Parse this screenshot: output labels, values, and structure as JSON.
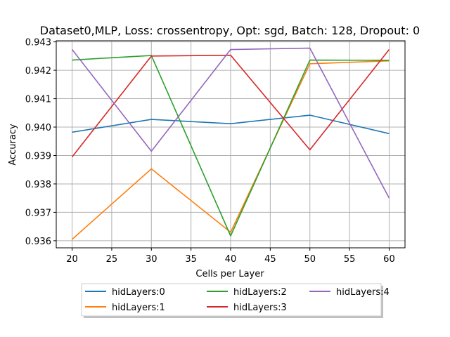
{
  "chart_data": {
    "type": "line",
    "title": "Dataset0,MLP, Loss: crossentropy, Opt: sgd, Batch: 128, Dropout: 0",
    "xlabel": "Cells per Layer",
    "ylabel": "Accuracy",
    "x": [
      20,
      30,
      40,
      50,
      60
    ],
    "xlim": [
      18,
      62
    ],
    "ylim": [
      0.93575,
      0.94304
    ],
    "xticks": [
      20,
      25,
      30,
      35,
      40,
      45,
      50,
      55,
      60
    ],
    "yticks": [
      0.936,
      0.937,
      0.938,
      0.939,
      0.94,
      0.941,
      0.942,
      0.943
    ],
    "grid": true,
    "legend_position": "bottom-center, outside plot, 3 columns",
    "series": [
      {
        "name": "hidLayers:0",
        "color": "#1f77b4",
        "values": [
          0.93982,
          0.94027,
          0.94012,
          0.94042,
          0.93977
        ]
      },
      {
        "name": "hidLayers:1",
        "color": "#ff7f0e",
        "values": [
          0.93605,
          0.93853,
          0.9363,
          0.94223,
          0.94233
        ]
      },
      {
        "name": "hidLayers:2",
        "color": "#2ca02c",
        "values": [
          0.94236,
          0.94252,
          0.93617,
          0.94236,
          0.94235
        ]
      },
      {
        "name": "hidLayers:3",
        "color": "#d62728",
        "values": [
          0.93895,
          0.9425,
          0.94253,
          0.9392,
          0.94273
        ]
      },
      {
        "name": "hidLayers:4",
        "color": "#9467bd",
        "values": [
          0.94273,
          0.93915,
          0.94273,
          0.94278,
          0.9375
        ]
      }
    ]
  }
}
